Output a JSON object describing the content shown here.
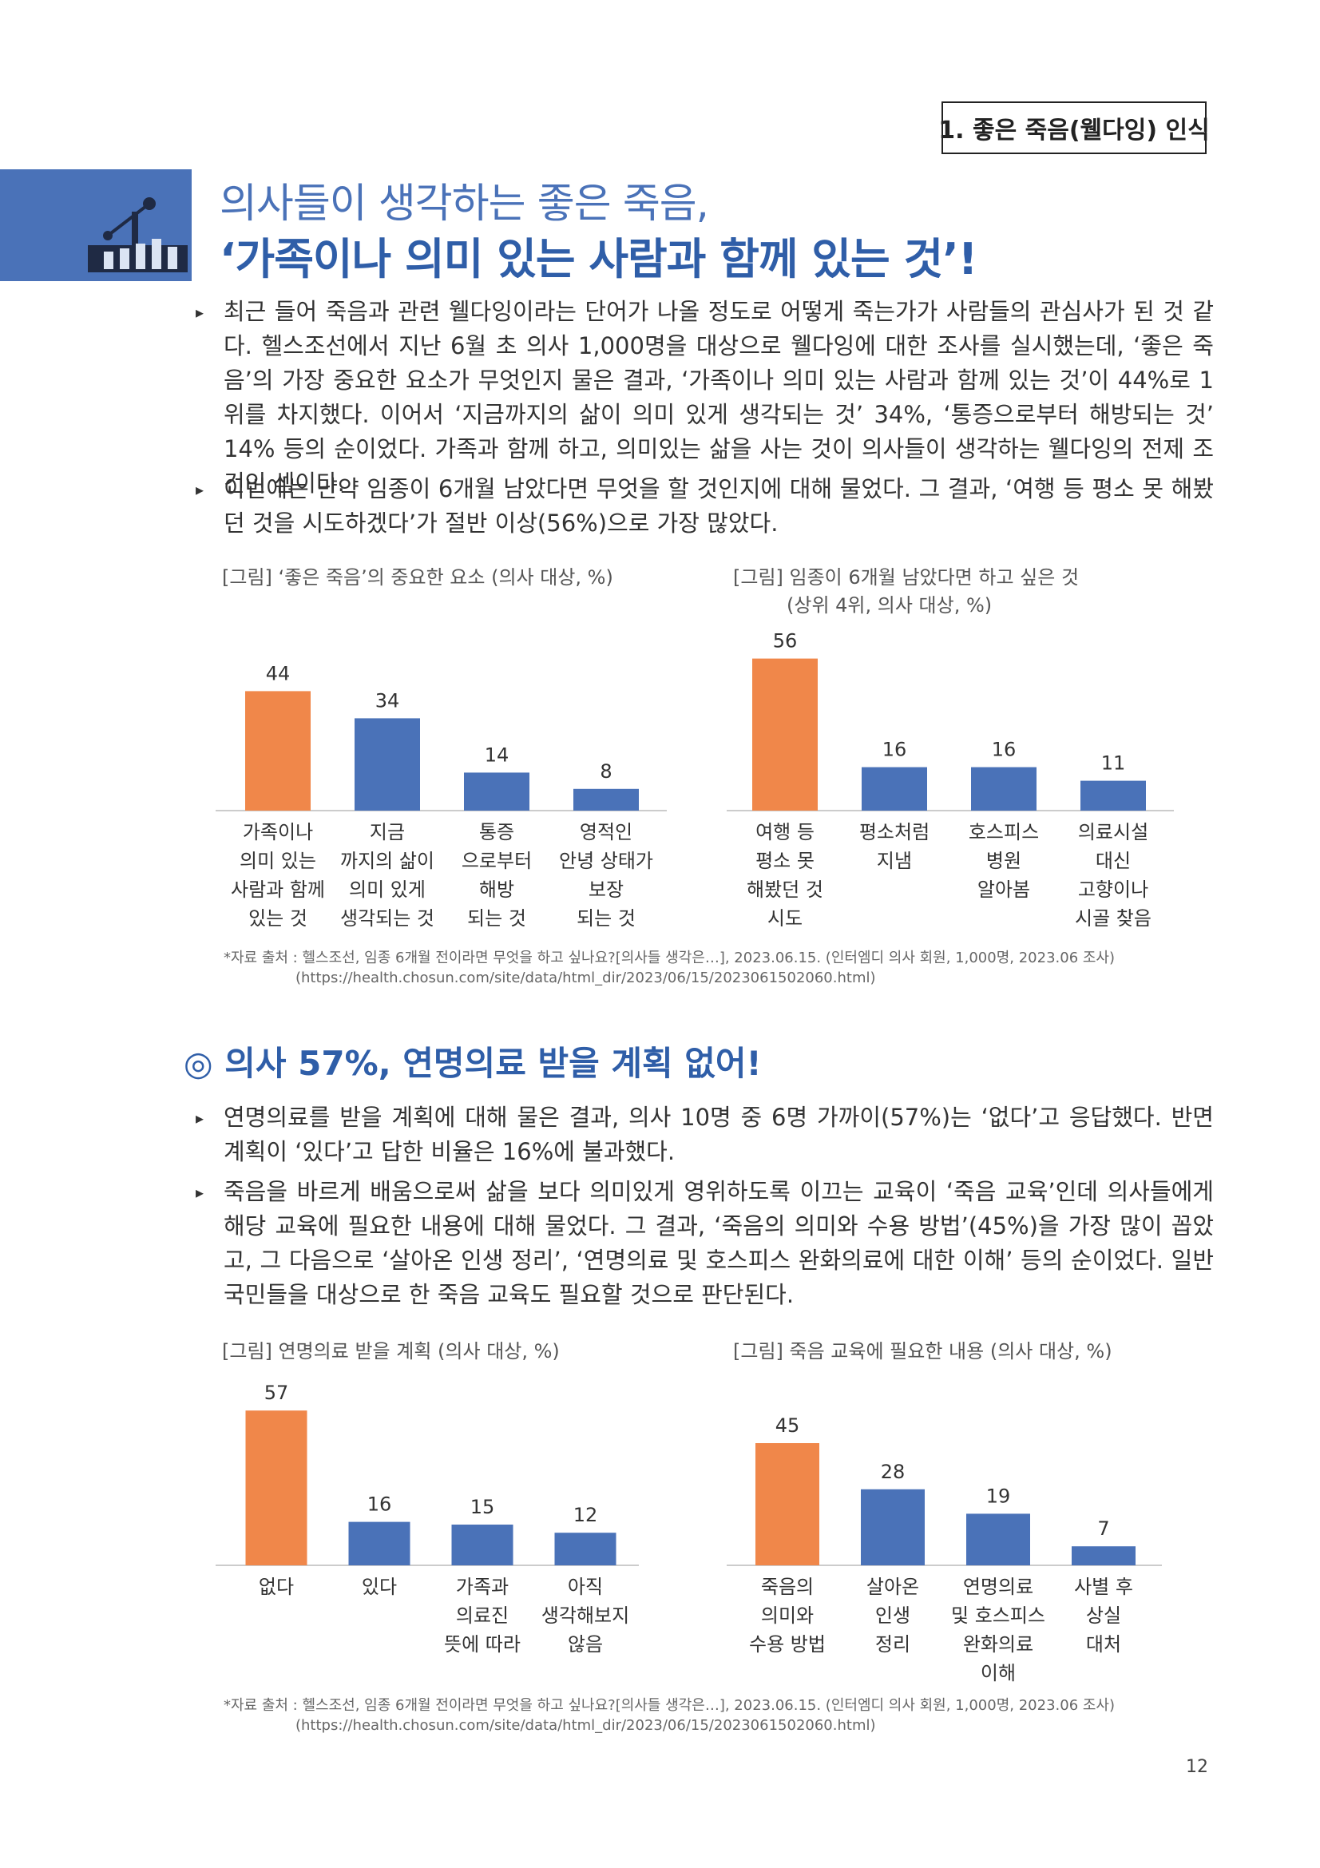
{
  "section_label": "1. 좋은 죽음(웰다잉) 인식",
  "title": {
    "line1": "의사들이 생각하는 좋은 죽음,",
    "line2": "‘가족이나 의미 있는 사람과 함께 있는 것’!"
  },
  "intro_bullets": [
    "최근 들어 죽음과 관련 웰다잉이라는 단어가 나올 정도로 어떻게 죽는가가 사람들의 관심사가 된 것 같다. 헬스조선에서 지난 6월 초 의사 1,000명을 대상으로 웰다잉에 대한 조사를 실시했는데, ‘좋은 죽음’의 가장 중요한 요소가 무엇인지 물은 결과, ‘가족이나 의미 있는 사람과 함께 있는 것’이 44%로 1위를 차지했다. 이어서 ‘지금까지의 삶이 의미 있게 생각되는 것’ 34%, ‘통증으로부터 해방되는 것’ 14% 등의 순이었다. 가족과 함께 하고, 의미있는 삶을 사는 것이 의사들이 생각하는 웰다잉의 전제 조건인 셈이다.",
    "이번에는 만약 임종이 6개월 남았다면 무엇을 할 것인지에 대해 물었다. 그 결과, ‘여행 등 평소 못 해봤던 것을 시도하겠다’가 절반 이상(56%)으로 가장 많았다."
  ],
  "subheading": "◎ 의사 57%, 연명의료 받을 계획 없어!",
  "second_bullets": [
    "연명의료를 받을 계획에 대해 물은 결과, 의사 10명 중 6명 가까이(57%)는 ‘없다’고 응답했다. 반면 계획이 ‘있다’고 답한 비율은 16%에 불과했다.",
    "죽음을 바르게 배움으로써 삶을 보다 의미있게 영위하도록 이끄는 교육이 ‘죽음 교육’인데 의사들에게 해당 교육에 필요한 내용에 대해 물었다. 그 결과, ‘죽음의 의미와 수용 방법’(45%)을 가장 많이 꼽았고, 그 다음으로 ‘살아온 인생 정리’, ‘연명의료 및 호스피스 완화의료에 대한 이해’ 등의 순이었다. 일반국민들을 대상으로 한 죽음 교육도 필요할 것으로 판단된다."
  ],
  "source_note": {
    "line1": "*자료 출처 : 헬스조선, 임종 6개월 전이라면 무엇을 하고 싶나요?[의사들 생각은…], 2023.06.15. (인터엠디 의사 회원, 1,000명, 2023.06 조사)",
    "line2": "(https://health.chosun.com/site/data/html_dir/2023/06/15/2023061502060.html)"
  },
  "page_number": "12",
  "colors": {
    "highlight": "#f0874a",
    "bar": "#4a72b8",
    "title_blue": "#2f5ea8"
  },
  "chart_data": [
    {
      "type": "bar",
      "title": "[그림] ‘좋은 죽음’의 중요한 요소 (의사 대상, %)",
      "categories": [
        [
          "가족이나",
          "의미 있는",
          "사람과 함께",
          "있는 것"
        ],
        [
          "지금",
          "까지의 삶이",
          "의미 있게",
          "생각되는 것"
        ],
        [
          "통증",
          "으로부터",
          "해방",
          "되는 것"
        ],
        [
          "영적인",
          "안녕 상태가",
          "보장",
          "되는 것"
        ]
      ],
      "values": [
        44,
        34,
        14,
        8
      ],
      "highlight_index": 0
    },
    {
      "type": "bar",
      "title": "[그림] 임종이 6개월 남았다면 하고 싶은 것",
      "subtitle": "(상위 4위, 의사 대상, %)",
      "categories": [
        [
          "여행 등",
          "평소 못",
          "해봤던 것",
          "시도"
        ],
        [
          "평소처럼",
          "지냄"
        ],
        [
          "호스피스",
          "병원",
          "알아봄"
        ],
        [
          "의료시설",
          "대신",
          "고향이나",
          "시골 찾음"
        ]
      ],
      "values": [
        56,
        16,
        16,
        11
      ],
      "highlight_index": 0
    },
    {
      "type": "bar",
      "title": "[그림] 연명의료 받을 계획 (의사 대상, %)",
      "categories": [
        [
          "없다"
        ],
        [
          "있다"
        ],
        [
          "가족과",
          "의료진",
          "뜻에 따라"
        ],
        [
          "아직",
          "생각해보지",
          "않음"
        ]
      ],
      "values": [
        57,
        16,
        15,
        12
      ],
      "highlight_index": 0
    },
    {
      "type": "bar",
      "title": "[그림] 죽음 교육에 필요한 내용 (의사 대상, %)",
      "categories": [
        [
          "죽음의",
          "의미와",
          "수용 방법"
        ],
        [
          "살아온",
          "인생",
          "정리"
        ],
        [
          "연명의료",
          "및 호스피스",
          "완화의료",
          "이해"
        ],
        [
          "사별 후",
          "상실",
          "대처"
        ]
      ],
      "values": [
        45,
        28,
        19,
        7
      ],
      "highlight_index": 0
    }
  ]
}
